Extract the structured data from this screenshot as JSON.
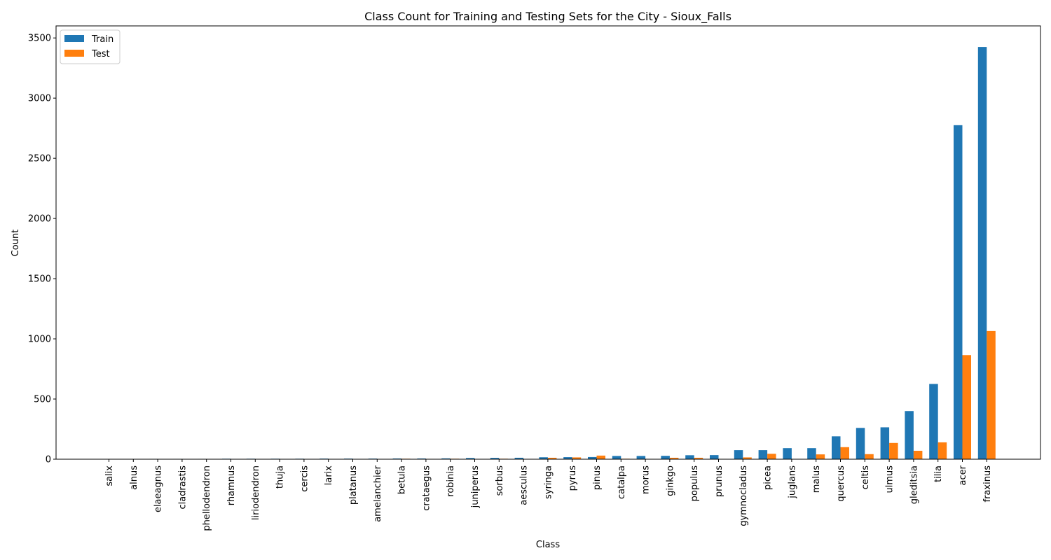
{
  "chart_data": {
    "type": "bar",
    "title": "Class Count for Training and Testing Sets for the City - Sioux_Falls",
    "xlabel": "Class",
    "ylabel": "Count",
    "ylim": [
      0,
      3600
    ],
    "yticks": [
      0,
      500,
      1000,
      1500,
      2000,
      2500,
      3000,
      3500
    ],
    "legend_position": "top-left",
    "grid": false,
    "categories": [
      "salix",
      "alnus",
      "elaeagnus",
      "cladrastis",
      "phellodendron",
      "rhamnus",
      "liriodendron",
      "thuja",
      "cercis",
      "larix",
      "platanus",
      "amelanchier",
      "betula",
      "crataegus",
      "robinia",
      "juniperus",
      "sorbus",
      "aesculus",
      "syringa",
      "pyrus",
      "pinus",
      "catalpa",
      "morus",
      "ginkgo",
      "populus",
      "prunus",
      "gymnocladus",
      "picea",
      "juglans",
      "malus",
      "quercus",
      "celtis",
      "ulmus",
      "gleditsia",
      "tilia",
      "acer",
      "fraxinus"
    ],
    "series": [
      {
        "name": "Train",
        "color": "#1f77b4",
        "values": [
          1,
          2,
          3,
          3,
          3,
          4,
          4,
          4,
          4,
          5,
          5,
          5,
          6,
          6,
          7,
          10,
          11,
          12,
          16,
          17,
          18,
          27,
          27,
          28,
          33,
          34,
          75,
          75,
          92,
          92,
          190,
          260,
          265,
          400,
          625,
          2775,
          3425
        ]
      },
      {
        "name": "Test",
        "color": "#ff7f0e",
        "values": [
          0,
          0,
          0,
          0,
          0,
          0,
          0,
          0,
          0,
          0,
          0,
          0,
          4,
          3,
          4,
          0,
          4,
          3,
          12,
          15,
          30,
          4,
          3,
          12,
          12,
          3,
          15,
          45,
          3,
          40,
          100,
          42,
          135,
          70,
          140,
          865,
          1065
        ]
      }
    ]
  }
}
